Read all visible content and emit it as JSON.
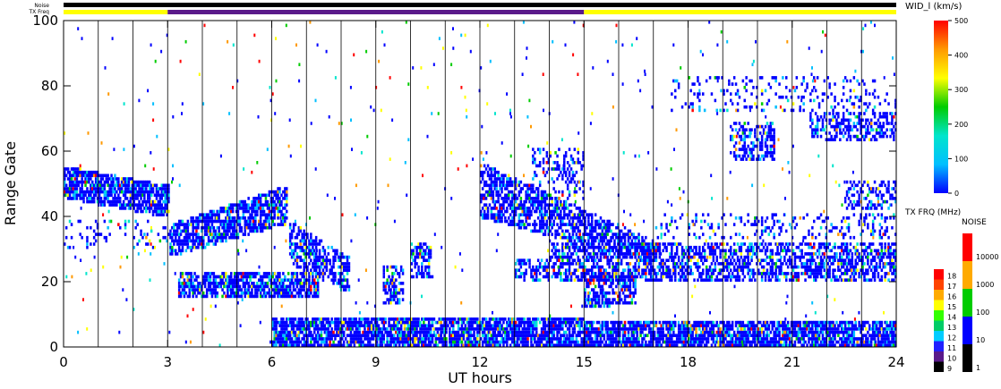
{
  "chart_data": {
    "type": "heatmap",
    "title": "",
    "xlabel": "UT hours",
    "ylabel": "Range Gate",
    "xlim": [
      0,
      24
    ],
    "ylim": [
      0,
      100
    ],
    "xticks": [
      "0",
      "3",
      "6",
      "9",
      "12",
      "15",
      "18",
      "21",
      "24"
    ],
    "yticks": [
      "0",
      "20",
      "40",
      "60",
      "80",
      "100"
    ],
    "colorbar": {
      "label": "WID_l (km/s)",
      "range": [
        0,
        500
      ],
      "ticks": [
        "0",
        "100",
        "200",
        "300",
        "400",
        "500"
      ],
      "colors": [
        "#0000ff",
        "#00bfff",
        "#00e5cc",
        "#00cc00",
        "#ffff00",
        "#ff9900",
        "#ff0000"
      ]
    },
    "top_bars": {
      "noise_label": "Noise",
      "txfreq_label": "TX Freq",
      "noise_color": "#000000",
      "txfreq_segments": [
        {
          "start": 0,
          "end": 3,
          "color": "#ffff00"
        },
        {
          "start": 3,
          "end": 15,
          "color": "#5a1a8a"
        },
        {
          "start": 15,
          "end": 24,
          "color": "#ffff00"
        }
      ]
    },
    "tx_freq_legend": {
      "label": "TX FRQ (MHz)",
      "ticks": [
        "9",
        "10",
        "11",
        "12",
        "13",
        "14",
        "15",
        "16",
        "17",
        "18"
      ],
      "colors": [
        "#000000",
        "#5a1a8a",
        "#2020ff",
        "#00ccff",
        "#00cc66",
        "#33ff00",
        "#ffff00",
        "#ffaa00",
        "#ff4400",
        "#ff0000"
      ]
    },
    "noise_legend": {
      "label": "NOISE",
      "ticks": [
        "1",
        "10",
        "100",
        "1000",
        "10000"
      ],
      "colors": [
        "#000000",
        "#0000ff",
        "#00cc00",
        "#ffaa00",
        "#ff0000"
      ]
    },
    "scan_lines_hours": [
      1,
      2,
      3,
      4,
      5,
      6,
      7,
      8,
      9,
      10,
      11,
      12,
      13,
      14,
      15,
      16,
      17,
      18,
      19,
      20,
      21,
      22,
      23
    ],
    "echo_regions": [
      {
        "t0": 0,
        "t1": 3,
        "g_start": [
          46,
          54
        ],
        "g_end": [
          40,
          48
        ],
        "density": 0.8
      },
      {
        "t0": 3.05,
        "t1": 6.4,
        "g_start": [
          28,
          36
        ],
        "g_end": [
          38,
          48
        ],
        "density": 0.75
      },
      {
        "t0": 3.3,
        "t1": 7.3,
        "g_start": [
          15,
          21
        ],
        "g_end": [
          16,
          22
        ],
        "density": 0.75
      },
      {
        "t0": 6.5,
        "t1": 8.2,
        "g_start": [
          26,
          37
        ],
        "g_end": [
          17,
          26
        ],
        "density": 0.6
      },
      {
        "t0": 6,
        "t1": 24,
        "g_start": [
          0,
          8
        ],
        "g_end": [
          0,
          6
        ],
        "density": 0.8
      },
      {
        "t0": 12,
        "t1": 17,
        "g_start": [
          40,
          55
        ],
        "g_end": [
          26,
          31
        ],
        "density": 0.65
      },
      {
        "t0": 14,
        "t1": 24,
        "g_start": [
          27,
          31
        ],
        "g_end": [
          27,
          31
        ],
        "density": 0.55
      },
      {
        "t0": 13,
        "t1": 24,
        "g_start": [
          20,
          26
        ],
        "g_end": [
          20,
          25
        ],
        "density": 0.55
      },
      {
        "t0": 15,
        "t1": 16.5,
        "g_start": [
          12,
          22
        ],
        "g_end": [
          14,
          22
        ],
        "density": 0.6
      },
      {
        "t0": 9.2,
        "t1": 9.8,
        "g_start": [
          13,
          24
        ],
        "g_end": [
          13,
          24
        ],
        "density": 0.55
      },
      {
        "t0": 10,
        "t1": 10.6,
        "g_start": [
          21,
          31
        ],
        "g_end": [
          21,
          31
        ],
        "density": 0.55
      },
      {
        "t0": 19.2,
        "t1": 20.5,
        "g_start": [
          57,
          68
        ],
        "g_end": [
          57,
          68
        ],
        "density": 0.45
      },
      {
        "t0": 21.5,
        "t1": 24,
        "g_start": [
          63,
          71
        ],
        "g_end": [
          63,
          71
        ],
        "density": 0.45
      },
      {
        "t0": 17,
        "t1": 24,
        "g_start": [
          33,
          40
        ],
        "g_end": [
          33,
          40
        ],
        "density": 0.2
      },
      {
        "t0": 22.5,
        "t1": 24,
        "g_start": [
          42,
          50
        ],
        "g_end": [
          42,
          50
        ],
        "density": 0.35
      },
      {
        "t0": 0,
        "t1": 3,
        "g_start": [
          30,
          38
        ],
        "g_end": [
          30,
          38
        ],
        "density": 0.12
      },
      {
        "t0": 13.5,
        "t1": 15,
        "g_start": [
          45,
          60
        ],
        "g_end": [
          45,
          60
        ],
        "density": 0.25
      },
      {
        "t0": 17.5,
        "t1": 24,
        "g_start": [
          72,
          82
        ],
        "g_end": [
          72,
          82
        ],
        "density": 0.15
      }
    ],
    "noise_points_per_hour": 22,
    "grid": false
  }
}
